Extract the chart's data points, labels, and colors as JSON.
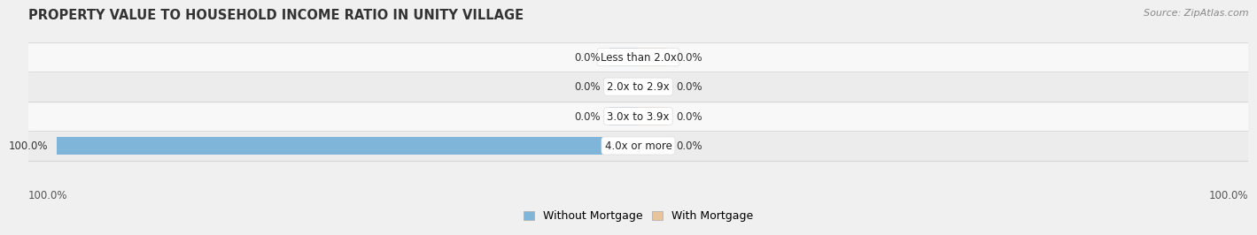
{
  "title": "PROPERTY VALUE TO HOUSEHOLD INCOME RATIO IN UNITY VILLAGE",
  "source": "Source: ZipAtlas.com",
  "categories": [
    "Less than 2.0x",
    "2.0x to 2.9x",
    "3.0x to 3.9x",
    "4.0x or more"
  ],
  "without_mortgage": [
    0.0,
    0.0,
    0.0,
    100.0
  ],
  "with_mortgage": [
    0.0,
    0.0,
    0.0,
    0.0
  ],
  "color_without": "#7eb5d9",
  "color_with": "#e8c49a",
  "bar_row_bg_light": "#ececec",
  "bar_row_bg_white": "#f8f8f8",
  "bar_height": 0.62,
  "min_bar_size": 5.0,
  "xlim_left": -105,
  "xlim_right": 105,
  "left_axis_label": "100.0%",
  "right_axis_label": "100.0%",
  "title_fontsize": 10.5,
  "source_fontsize": 8,
  "label_fontsize": 8.5,
  "cat_fontsize": 8.5,
  "legend_fontsize": 9,
  "background_color": "#f0f0f0"
}
